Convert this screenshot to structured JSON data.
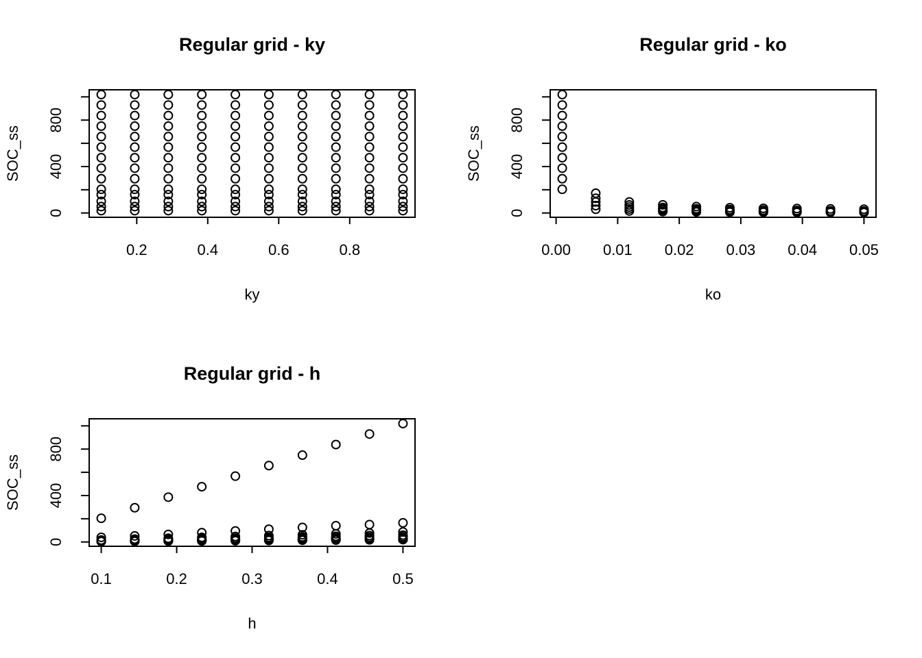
{
  "chart_data": [
    {
      "type": "scatter",
      "title": "Regular grid -  ky",
      "x_label": "ky",
      "y_label": "SOC_ss",
      "xlim": [
        0.066,
        0.984
      ],
      "ylim": [
        -37,
        1061
      ],
      "xticks": [
        0.2,
        0.4,
        0.6,
        0.8
      ],
      "yticks": [
        0,
        {
          "value": 200,
          "label": null
        },
        400,
        {
          "value": 600,
          "label": null
        },
        800,
        {
          "value": 1000,
          "label": null
        }
      ],
      "marker": "open-circle",
      "color": "#000000",
      "x": [
        0.1,
        0.1,
        0.1,
        0.1,
        0.1,
        0.1,
        0.1,
        0.1,
        0.1,
        0.1,
        0.1,
        0.1,
        0.1,
        0.1,
        0.1944,
        0.1944,
        0.1944,
        0.1944,
        0.1944,
        0.1944,
        0.1944,
        0.1944,
        0.1944,
        0.1944,
        0.1944,
        0.1944,
        0.1944,
        0.1944,
        0.2889,
        0.2889,
        0.2889,
        0.2889,
        0.2889,
        0.2889,
        0.2889,
        0.2889,
        0.2889,
        0.2889,
        0.2889,
        0.2889,
        0.2889,
        0.2889,
        0.3833,
        0.3833,
        0.3833,
        0.3833,
        0.3833,
        0.3833,
        0.3833,
        0.3833,
        0.3833,
        0.3833,
        0.3833,
        0.3833,
        0.3833,
        0.3833,
        0.4778,
        0.4778,
        0.4778,
        0.4778,
        0.4778,
        0.4778,
        0.4778,
        0.4778,
        0.4778,
        0.4778,
        0.4778,
        0.4778,
        0.4778,
        0.4778,
        0.5722,
        0.5722,
        0.5722,
        0.5722,
        0.5722,
        0.5722,
        0.5722,
        0.5722,
        0.5722,
        0.5722,
        0.5722,
        0.5722,
        0.5722,
        0.5722,
        0.6667,
        0.6667,
        0.6667,
        0.6667,
        0.6667,
        0.6667,
        0.6667,
        0.6667,
        0.6667,
        0.6667,
        0.6667,
        0.6667,
        0.6667,
        0.6667,
        0.7611,
        0.7611,
        0.7611,
        0.7611,
        0.7611,
        0.7611,
        0.7611,
        0.7611,
        0.7611,
        0.7611,
        0.7611,
        0.7611,
        0.7611,
        0.7611,
        0.8556,
        0.8556,
        0.8556,
        0.8556,
        0.8556,
        0.8556,
        0.8556,
        0.8556,
        0.8556,
        0.8556,
        0.8556,
        0.8556,
        0.8556,
        0.8556,
        0.95,
        0.95,
        0.95,
        0.95,
        0.95,
        0.95,
        0.95,
        0.95,
        0.95,
        0.95,
        0.95,
        0.95,
        0.95,
        0.95
      ],
      "values": [
        1020,
        930,
        839,
        748,
        658,
        567,
        476,
        386,
        295,
        204,
        158,
        100,
        55,
        20,
        1020,
        930,
        839,
        748,
        658,
        567,
        476,
        386,
        295,
        204,
        158,
        100,
        55,
        20,
        1020,
        930,
        839,
        748,
        658,
        567,
        476,
        386,
        295,
        204,
        158,
        100,
        55,
        20,
        1020,
        930,
        839,
        748,
        658,
        567,
        476,
        386,
        295,
        204,
        158,
        100,
        55,
        20,
        1020,
        930,
        839,
        748,
        658,
        567,
        476,
        386,
        295,
        204,
        158,
        100,
        55,
        20,
        1020,
        930,
        839,
        748,
        658,
        567,
        476,
        386,
        295,
        204,
        158,
        100,
        55,
        20,
        1020,
        930,
        839,
        748,
        658,
        567,
        476,
        386,
        295,
        204,
        158,
        100,
        55,
        20,
        1020,
        930,
        839,
        748,
        658,
        567,
        476,
        386,
        295,
        204,
        158,
        100,
        55,
        20,
        1020,
        930,
        839,
        748,
        658,
        567,
        476,
        386,
        295,
        204,
        158,
        100,
        55,
        20,
        1020,
        930,
        839,
        748,
        658,
        567,
        476,
        386,
        295,
        204,
        158,
        100,
        55,
        20
      ]
    },
    {
      "type": "scatter",
      "title": "Regular grid -  ko",
      "x_label": "ko",
      "y_label": "SOC_ss",
      "xlim": [
        -0.00096,
        0.05196
      ],
      "ylim": [
        -37,
        1061
      ],
      "xticks": [
        {
          "value": 0,
          "label": "0.00"
        },
        0.01,
        0.02,
        0.03,
        0.04,
        0.05
      ],
      "yticks": [
        0,
        {
          "value": 200,
          "label": null
        },
        400,
        {
          "value": 600,
          "label": null
        },
        800,
        {
          "value": 1000,
          "label": null
        }
      ],
      "marker": "open-circle",
      "color": "#000000",
      "x": [
        0.001,
        0.001,
        0.001,
        0.001,
        0.001,
        0.001,
        0.001,
        0.001,
        0.001,
        0.001,
        0.00644,
        0.00644,
        0.00644,
        0.00644,
        0.00644,
        0.01189,
        0.01189,
        0.01189,
        0.01189,
        0.01189,
        0.01733,
        0.01733,
        0.01733,
        0.01733,
        0.01733,
        0.02278,
        0.02278,
        0.02278,
        0.02278,
        0.02278,
        0.02822,
        0.02822,
        0.02822,
        0.02822,
        0.02822,
        0.03367,
        0.03367,
        0.03367,
        0.03367,
        0.03367,
        0.03911,
        0.03911,
        0.03911,
        0.03911,
        0.03911,
        0.04456,
        0.04456,
        0.04456,
        0.04456,
        0.04456,
        0.05,
        0.05,
        0.05,
        0.05,
        0.05
      ],
      "values": [
        204,
        295,
        386,
        476,
        567,
        658,
        748,
        839,
        930,
        1020,
        32,
        63,
        95,
        127,
        170,
        17,
        34,
        51,
        69,
        95,
        12,
        24,
        35,
        47,
        70,
        9,
        18,
        27,
        36,
        55,
        7,
        14,
        22,
        29,
        45,
        6,
        12,
        18,
        24,
        40,
        5,
        10,
        16,
        21,
        38,
        5,
        9,
        14,
        18,
        35,
        4,
        8,
        12,
        16,
        32
      ]
    },
    {
      "type": "scatter",
      "title": "Regular grid -  h",
      "x_label": "h",
      "y_label": "SOC_ss",
      "xlim": [
        0.084,
        0.516
      ],
      "ylim": [
        -37,
        1061
      ],
      "xticks": [
        0.1,
        0.2,
        0.3,
        0.4,
        0.5
      ],
      "yticks": [
        0,
        {
          "value": 200,
          "label": null
        },
        400,
        {
          "value": 600,
          "label": null
        },
        800,
        {
          "value": 1000,
          "label": null
        }
      ],
      "marker": "open-circle",
      "color": "#000000",
      "x": [
        0.1,
        0.1,
        0.1,
        0.1,
        0.1,
        0.1,
        0.1,
        0.1,
        0.1,
        0.1,
        0.1444,
        0.1444,
        0.1444,
        0.1444,
        0.1444,
        0.1444,
        0.1444,
        0.1444,
        0.1444,
        0.1444,
        0.1889,
        0.1889,
        0.1889,
        0.1889,
        0.1889,
        0.1889,
        0.1889,
        0.1889,
        0.1889,
        0.1889,
        0.2333,
        0.2333,
        0.2333,
        0.2333,
        0.2333,
        0.2333,
        0.2333,
        0.2333,
        0.2333,
        0.2333,
        0.2778,
        0.2778,
        0.2778,
        0.2778,
        0.2778,
        0.2778,
        0.2778,
        0.2778,
        0.2778,
        0.2778,
        0.3222,
        0.3222,
        0.3222,
        0.3222,
        0.3222,
        0.3222,
        0.3222,
        0.3222,
        0.3222,
        0.3222,
        0.3667,
        0.3667,
        0.3667,
        0.3667,
        0.3667,
        0.3667,
        0.3667,
        0.3667,
        0.3667,
        0.3667,
        0.4111,
        0.4111,
        0.4111,
        0.4111,
        0.4111,
        0.4111,
        0.4111,
        0.4111,
        0.4111,
        0.4111,
        0.4556,
        0.4556,
        0.4556,
        0.4556,
        0.4556,
        0.4556,
        0.4556,
        0.4556,
        0.4556,
        0.4556,
        0.5,
        0.5,
        0.5,
        0.5,
        0.5,
        0.5,
        0.5,
        0.5,
        0.5,
        0.5
      ],
      "values": [
        204,
        40,
        17,
        12,
        9,
        7,
        6,
        5,
        5,
        4,
        295,
        52,
        25,
        17,
        13,
        10,
        9,
        7,
        7,
        6,
        386,
        65,
        32,
        23,
        17,
        13,
        11,
        9,
        9,
        8,
        476,
        80,
        40,
        28,
        21,
        16,
        14,
        12,
        12,
        9,
        567,
        95,
        47,
        33,
        25,
        19,
        17,
        14,
        14,
        11,
        658,
        110,
        55,
        39,
        29,
        23,
        19,
        16,
        16,
        13,
        748,
        125,
        62,
        44,
        33,
        26,
        22,
        18,
        18,
        15,
        839,
        140,
        70,
        49,
        37,
        29,
        25,
        21,
        21,
        16,
        930,
        150,
        77,
        55,
        41,
        32,
        27,
        23,
        23,
        18,
        1020,
        165,
        86,
        59,
        45,
        36,
        30,
        26,
        23,
        20
      ]
    }
  ]
}
